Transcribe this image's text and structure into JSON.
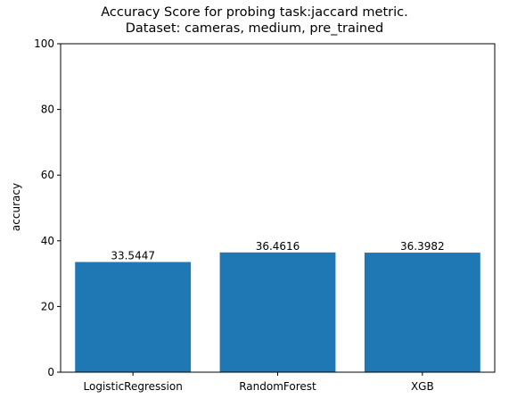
{
  "chart_data": {
    "type": "bar",
    "title_line1": "Accuracy Score for probing task:jaccard metric.",
    "title_line2": "Dataset: cameras, medium, pre_trained",
    "xlabel": "",
    "ylabel": "accuracy",
    "categories": [
      "LogisticRegression",
      "RandomForest",
      "XGB"
    ],
    "values": [
      33.5447,
      36.4616,
      36.3982
    ],
    "value_labels": [
      "33.5447",
      "36.4616",
      "36.3982"
    ],
    "ylim": [
      0,
      100
    ],
    "yticks": [
      0,
      20,
      40,
      60,
      80,
      100
    ],
    "bar_color": "#1f77b4",
    "grid": false,
    "legend": false
  }
}
